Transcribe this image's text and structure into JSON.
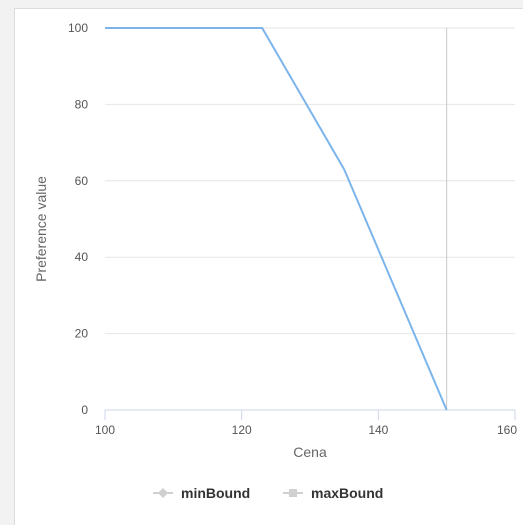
{
  "chart_data": {
    "type": "line",
    "title": "",
    "xlabel": "Cena",
    "ylabel": "Preference value",
    "xlim": [
      100,
      160
    ],
    "ylim": [
      0,
      100
    ],
    "x_ticks": [
      100,
      120,
      140,
      160
    ],
    "y_ticks": [
      0,
      20,
      40,
      60,
      80,
      100
    ],
    "grid": true,
    "marker_x": 150,
    "series": [
      {
        "values": [
          [
            100,
            100
          ],
          [
            123,
            100
          ],
          [
            135,
            63
          ],
          [
            150,
            0
          ]
        ],
        "color": "#7cb5ec"
      }
    ],
    "legend": {
      "placement": "bottom",
      "items": [
        {
          "name": "minBound",
          "symbol": "diamond-icon",
          "color": "#d0d0d0"
        },
        {
          "name": "maxBound",
          "symbol": "square-icon",
          "color": "#d0d0d0"
        }
      ]
    }
  },
  "colors": {
    "grid": "#e6e6e6",
    "axis": "#ccd6eb",
    "marker_line": "#c8c8c8"
  }
}
